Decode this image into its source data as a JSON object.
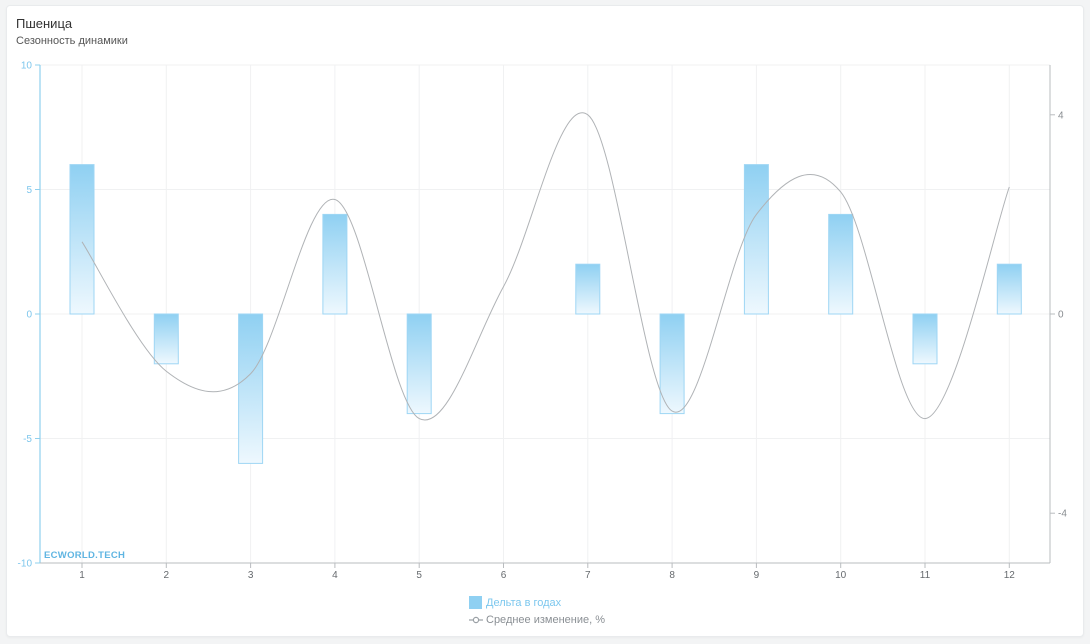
{
  "header": {
    "title": "Пшеница",
    "subtitle": "Сезонность динамики"
  },
  "watermark": "ECWORLD.TECH",
  "legend": {
    "bar_label": "Дельта в годах",
    "line_label": "Среднее изменение, %"
  },
  "colors": {
    "bar_fill_top": "#8fd0f2",
    "bar_fill_bottom": "#eef8fe",
    "bar_stroke": "#9ed6f4",
    "left_axis": "#8fd0ee",
    "line": "#b0b3b6",
    "grid": "#f0f1f2"
  },
  "chart_data": {
    "type": "bar",
    "categories": [
      "1",
      "2",
      "3",
      "4",
      "5",
      "6",
      "7",
      "8",
      "9",
      "10",
      "11",
      "12"
    ],
    "series": [
      {
        "name": "Дельта в годах",
        "type": "bar",
        "axis": "left",
        "values": [
          6,
          -2,
          -6,
          4,
          -4,
          0,
          2,
          -4,
          6,
          4,
          -2,
          2
        ]
      },
      {
        "name": "Среднее изменение, %",
        "type": "line",
        "axis": "right",
        "values": [
          1.45,
          -1.15,
          -1.2,
          2.3,
          -2.1,
          0.55,
          4.0,
          -1.95,
          2.0,
          2.45,
          -2.1,
          2.55
        ]
      }
    ],
    "y_left": {
      "ticks": [
        10,
        5,
        0,
        -5,
        -10
      ],
      "ylim": [
        -10,
        10
      ]
    },
    "y_right": {
      "ticks": [
        4,
        0,
        -4
      ],
      "ylim": [
        -5,
        5
      ]
    },
    "grid": true,
    "legend_position": "bottom-center"
  }
}
